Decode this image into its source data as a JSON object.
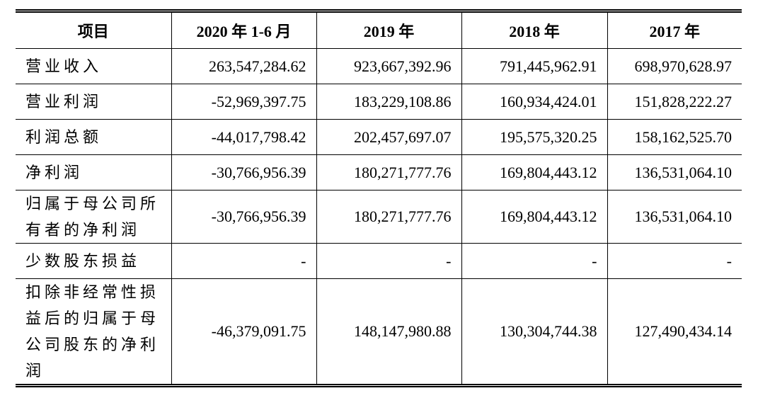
{
  "table": {
    "columns": [
      "项目",
      "2020 年 1-6 月",
      "2019 年",
      "2018 年",
      "2017 年"
    ],
    "rows": [
      [
        "营业收入",
        "263,547,284.62",
        "923,667,392.96",
        "791,445,962.91",
        "698,970,628.97"
      ],
      [
        "营业利润",
        "-52,969,397.75",
        "183,229,108.86",
        "160,934,424.01",
        "151,828,222.27"
      ],
      [
        "利润总额",
        "-44,017,798.42",
        "202,457,697.07",
        "195,575,320.25",
        "158,162,525.70"
      ],
      [
        "净利润",
        "-30,766,956.39",
        "180,271,777.76",
        "169,804,443.12",
        "136,531,064.10"
      ],
      [
        "归属于母公司所有者的净利润",
        "-30,766,956.39",
        "180,271,777.76",
        "169,804,443.12",
        "136,531,064.10"
      ],
      [
        "少数股东损益",
        "-",
        "-",
        "-",
        "-"
      ],
      [
        "扣除非经常性损益后的归属于母公司股东的净利润",
        "-46,379,091.75",
        "148,147,980.88",
        "130,304,744.38",
        "127,490,434.14"
      ]
    ]
  }
}
